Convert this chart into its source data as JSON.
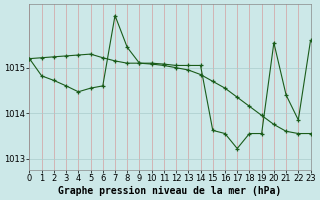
{
  "title": "Graphe pression niveau de la mer (hPa)",
  "background_color": "#cce8e8",
  "grid_color_v": "#d4a0a0",
  "grid_color_h": "#aacccc",
  "line_color": "#1a5c1a",
  "xlim": [
    0,
    23
  ],
  "ylim": [
    1012.75,
    1016.4
  ],
  "yticks": [
    1013,
    1014,
    1015
  ],
  "xticks": [
    0,
    1,
    2,
    3,
    4,
    5,
    6,
    7,
    8,
    9,
    10,
    11,
    12,
    13,
    14,
    15,
    16,
    17,
    18,
    19,
    20,
    21,
    22,
    23
  ],
  "s1_x": [
    0,
    1,
    2,
    3,
    4,
    5,
    6,
    7,
    8,
    9,
    10,
    11,
    12,
    13,
    14,
    15,
    16,
    17,
    18,
    19,
    20,
    21,
    22,
    23
  ],
  "s1_y": [
    1015.2,
    1015.22,
    1015.24,
    1015.26,
    1015.28,
    1015.3,
    1015.22,
    1015.15,
    1015.1,
    1015.1,
    1015.08,
    1015.05,
    1015.0,
    1014.95,
    1014.85,
    1014.7,
    1014.55,
    1014.35,
    1014.15,
    1013.95,
    1013.75,
    1013.6,
    1013.55,
    1013.55
  ],
  "s2_x": [
    0,
    1,
    2,
    3,
    4,
    5,
    6,
    7,
    8,
    9,
    10,
    11,
    12,
    13,
    14,
    15,
    16,
    17,
    18,
    19,
    20,
    21,
    22,
    23
  ],
  "s2_y": [
    1015.2,
    1014.82,
    1014.72,
    1014.6,
    1014.47,
    1014.55,
    1014.6,
    1016.15,
    1015.45,
    1015.1,
    1015.1,
    1015.08,
    1015.05,
    1015.05,
    1015.05,
    1013.62,
    1013.55,
    1013.22,
    1013.55,
    1013.55,
    1015.55,
    1014.4,
    1013.85,
    1015.6
  ],
  "tick_fontsize": 6,
  "label_fontsize": 7
}
